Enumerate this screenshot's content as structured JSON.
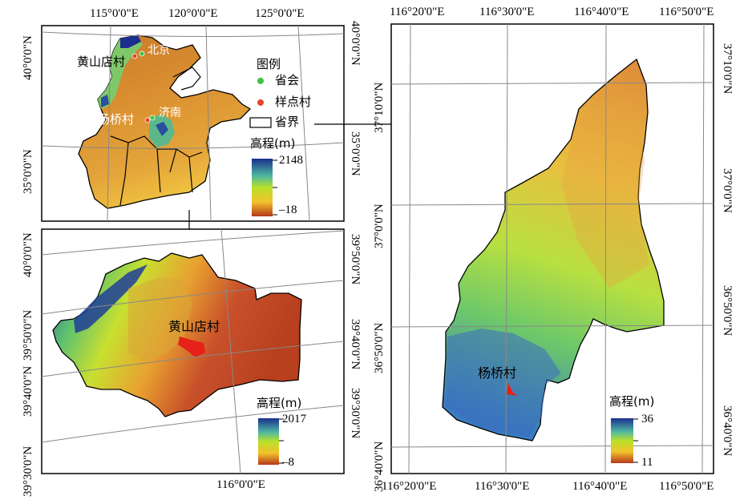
{
  "panel_a": {
    "top_lon_labels": [
      "115°0'0\"E",
      "120°0'0\"E",
      "125°0'0\"E"
    ],
    "left_lat_labels": [
      "40°0'0\"N",
      "35°0'0\"N"
    ],
    "right_lat_labels": [
      "40°0'0\"N",
      "35°0'0\"N"
    ],
    "places": {
      "huangshandian": "黄山店村",
      "beijing": "北京",
      "yangqiao": "杨桥村",
      "jinan": "济南"
    },
    "legend": {
      "title": "图例",
      "capital": "省会",
      "sample_village": "样点村",
      "province_boundary": "省界"
    },
    "elevation": {
      "title": "高程(m)",
      "max": "2148",
      "min": "–18"
    }
  },
  "panel_b": {
    "left_lat_labels": [
      "40°0'0\"N",
      "39°50'0\"N",
      "39°40'0\"N",
      "39°30'0\"N"
    ],
    "right_lat_labels": [
      "39°50'0\"N",
      "39°40'0\"N",
      "39°30'0\"N"
    ],
    "bottom_lon_label": "116°0'0\"E",
    "village": "黄山店村",
    "elevation": {
      "title": "高程(m)",
      "max": "2017",
      "min": "–8"
    }
  },
  "panel_c": {
    "top_lon_labels": [
      "116°20'0\"E",
      "116°30'0\"E",
      "116°40'0\"E",
      "116°50'0\"E"
    ],
    "bottom_lon_labels": [
      "116°20'0\"E",
      "116°30'0\"E",
      "116°40'0\"E",
      "116°50'0\"E"
    ],
    "left_lat_labels": [
      "37°10'0\"N",
      "37°0'0\"N",
      "36°50'0\"N",
      "36°40'0\"N"
    ],
    "right_lat_labels": [
      "37°10'0\"N",
      "37°0'0\"N",
      "36°50'0\"N",
      "36°40'0\"N"
    ],
    "village": "杨桥村",
    "elevation": {
      "title": "高程(m)",
      "max": "36",
      "min": "11"
    }
  },
  "colors": {
    "elev_high": "#1b2f8f",
    "elev_mid_high": "#4fb8a0",
    "elev_mid": "#b8e02a",
    "elev_mid_low": "#f2c22c",
    "elev_low": "#b5381c",
    "capital_dot": "#44c040",
    "sample_dot": "#e8452a"
  }
}
